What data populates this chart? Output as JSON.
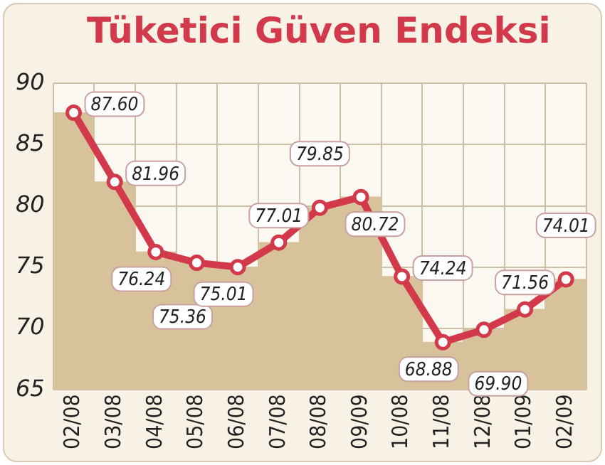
{
  "chart_data": {
    "type": "line",
    "title": "Tüketici Güven Endeksi",
    "categories": [
      "02/08",
      "03/08",
      "04/08",
      "05/08",
      "06/08",
      "07/08",
      "08/08",
      "09/09",
      "10/08",
      "11/08",
      "12/08",
      "01/09",
      "02/09"
    ],
    "series": [
      {
        "type": "bar",
        "color": "#d8c29c",
        "values": [
          87.6,
          81.96,
          76.24,
          75.36,
          75.01,
          77.01,
          79.85,
          80.72,
          74.24,
          68.88,
          69.9,
          71.56,
          74.01
        ]
      },
      {
        "color": "#d23a4c",
        "values": [
          87.6,
          81.96,
          76.24,
          75.36,
          75.01,
          77.01,
          79.85,
          80.72,
          74.24,
          68.88,
          69.9,
          71.56,
          74.01
        ],
        "value_labels": [
          "87.60",
          "81.96",
          "76.24",
          "75.36",
          "75.01",
          "77.01",
          "79.85",
          "80.72",
          "74.24",
          "68.88",
          "69.90",
          "71.56",
          "74.01"
        ]
      }
    ],
    "ylim": [
      65,
      90
    ],
    "yticks": [
      65,
      70,
      75,
      80,
      85,
      90
    ],
    "grid": true,
    "marker": "circle",
    "legend": false
  }
}
